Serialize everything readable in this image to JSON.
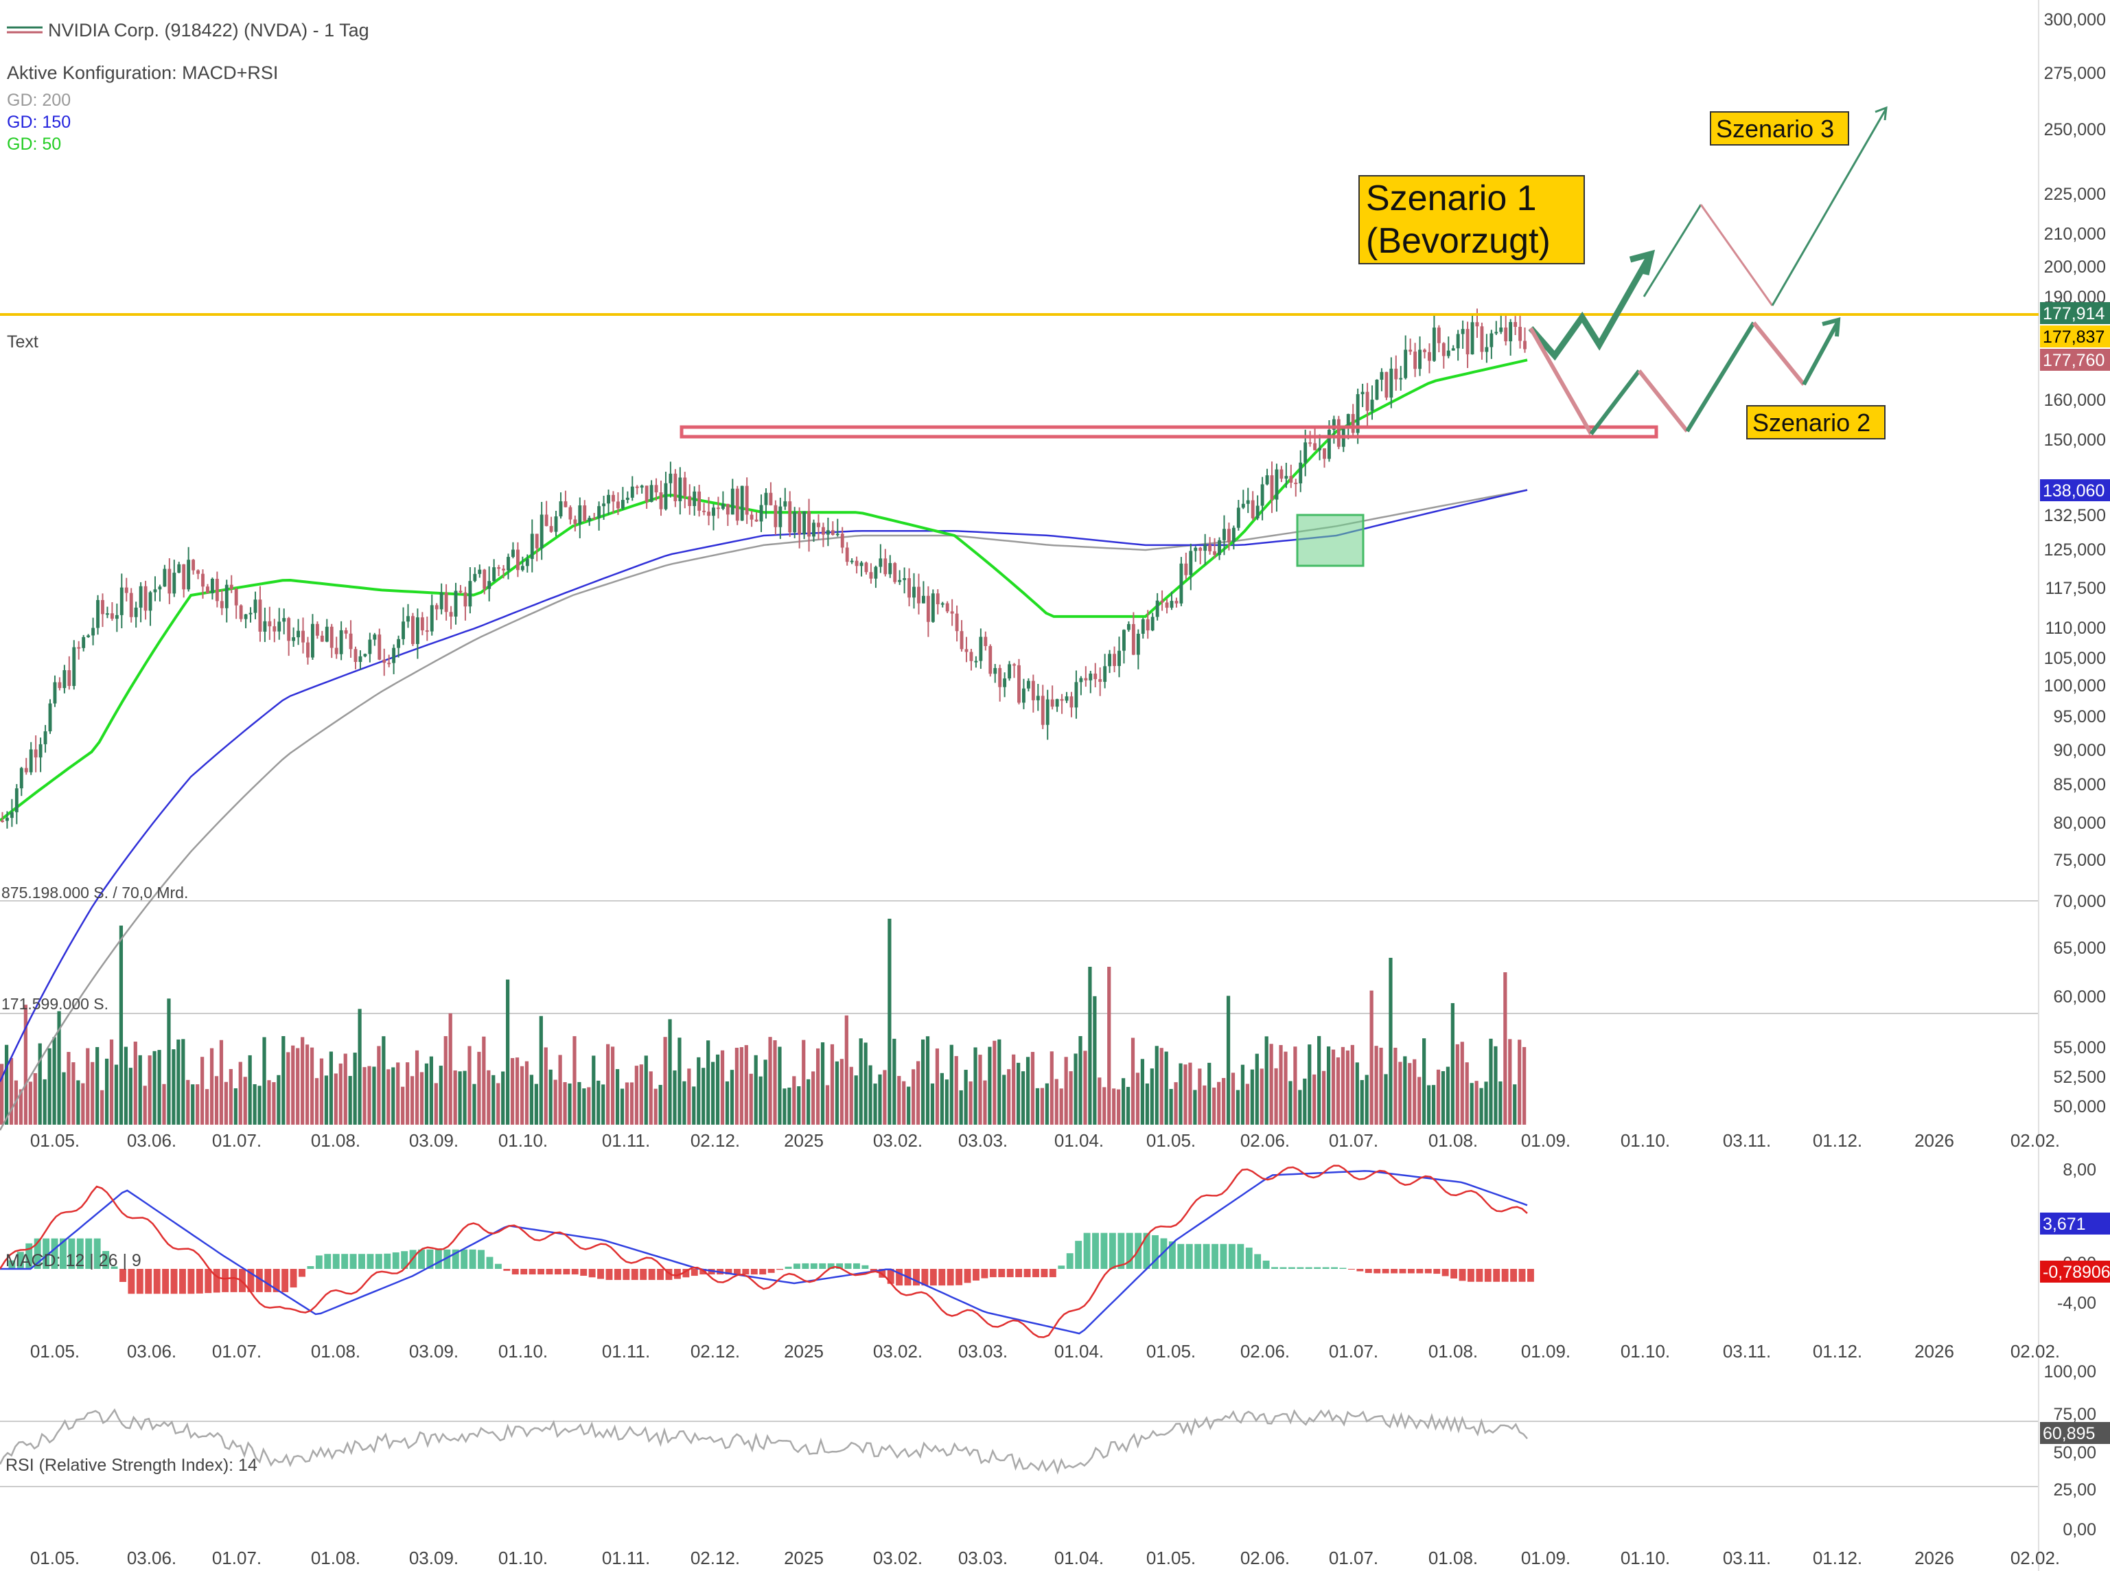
{
  "header": {
    "title": "NVIDIA Corp. (918422) (NVDA) - 1 Tag",
    "config": "Aktive Konfiguration: MACD+RSI",
    "legend": [
      {
        "label": "GD: 200",
        "color": "#999999"
      },
      {
        "label": "GD: 150",
        "color": "#2222dd"
      },
      {
        "label": "GD: 50",
        "color": "#22dd22"
      }
    ],
    "text_label": "Text"
  },
  "colors": {
    "up": "#2e7d5a",
    "down": "#c0616d",
    "resistance": "#e06070",
    "yellow_line": "#f5c400",
    "ma200": "#9a9a9a",
    "ma150": "#3030d8",
    "ma50": "#22dd22",
    "arrow_green": "#3f8f6a",
    "arrow_red": "#d48a92",
    "callout_bg": "#ffd000"
  },
  "scenarios": {
    "s1_line1": "Szenario 1",
    "s1_line2": "(Bevorzugt)",
    "s2": "Szenario 2",
    "s3": "Szenario 3"
  },
  "price_axis": {
    "ticks": [
      "300,000",
      "275,000",
      "250,000",
      "225,000",
      "210,000",
      "200,000",
      "190,000",
      "160,000",
      "150,000",
      "132,500",
      "125,000",
      "117,500",
      "110,000",
      "105,000",
      "100,000",
      "95,000",
      "90,000",
      "85,000",
      "80,000",
      "75,000",
      "70,000",
      "65,000",
      "60,000",
      "55,000",
      "52,500",
      "50,000"
    ],
    "badges": [
      {
        "text": "177,914",
        "bg": "#2e7d5a",
        "fg": "#ffffff"
      },
      {
        "text": "177,837",
        "bg": "#ffd000",
        "fg": "#000000"
      },
      {
        "text": "177,760",
        "bg": "#c0616d",
        "fg": "#ffffff"
      },
      {
        "text": "138,060",
        "bg": "#2a2ad0",
        "fg": "#ffffff"
      }
    ]
  },
  "volume": {
    "label1": "875.198.000 S. / 70,0 Mrd.",
    "label2": "171.599.000 S."
  },
  "macd": {
    "label": "MACD: 12 | 26 | 9",
    "ticks": [
      "8,00",
      "0,00",
      "-4,00"
    ],
    "badges": [
      {
        "text": "3,671",
        "bg": "#2a2ad0",
        "fg": "#ffffff"
      },
      {
        "text": "-0,78906",
        "bg": "#e01010",
        "fg": "#ffffff"
      }
    ]
  },
  "rsi": {
    "label": "RSI (Relative Strength Index): 14",
    "ticks": [
      "100,00",
      "75,00",
      "50,00",
      "25,00",
      "0,00"
    ],
    "badge": {
      "text": "60,895",
      "bg": "#555555",
      "fg": "#ffffff"
    }
  },
  "time_axis": [
    "01.05.",
    "03.06.",
    "01.07.",
    "01.08.",
    "03.09.",
    "01.10.",
    "01.11.",
    "02.12.",
    "2025",
    "03.02.",
    "03.03.",
    "01.04.",
    "01.05.",
    "02.06.",
    "01.07.",
    "01.08.",
    "01.09.",
    "01.10.",
    "03.11.",
    "01.12.",
    "2026",
    "02.02."
  ],
  "chart_data": {
    "type": "candlestick",
    "title": "NVIDIA Corp. (918422) (NVDA) - 1 Tag",
    "x": [
      "01.05.",
      "03.06.",
      "01.07.",
      "01.08.",
      "03.09.",
      "01.10.",
      "01.11.",
      "02.12.",
      "2025",
      "03.02.",
      "03.03.",
      "01.04.",
      "01.05.",
      "02.06.",
      "01.07.",
      "01.08.",
      "01.09.",
      "01.10.",
      "03.11.",
      "01.12.",
      "2026",
      "02.02."
    ],
    "price_series": [
      {
        "name": "Kurs",
        "values": [
          80,
          112,
          121,
          108,
          106,
          118,
          134,
          138,
          134,
          124,
          110,
          95,
          110,
          133,
          151,
          176,
          178
        ]
      }
    ],
    "moving_averages": [
      {
        "name": "GD: 200",
        "values": [
          48,
          62,
          76,
          89,
          99,
          108,
          116,
          122,
          126,
          128,
          128,
          126,
          125,
          127,
          130,
          134,
          138
        ]
      },
      {
        "name": "GD: 150",
        "values": [
          52,
          70,
          86,
          98,
          104,
          110,
          117,
          124,
          128,
          129,
          129,
          128,
          126,
          126,
          128,
          133,
          138
        ]
      },
      {
        "name": "GD: 50",
        "values": [
          80,
          90,
          116,
          119,
          117,
          116,
          130,
          137,
          133,
          133,
          128,
          112,
          112,
          128,
          152,
          165,
          171
        ]
      }
    ],
    "levels": {
      "resistance": 151,
      "current": 177.837
    },
    "ylim": [
      50,
      300
    ],
    "macd": {
      "values": [
        0,
        5.5,
        1,
        -3.2,
        -0.5,
        3,
        2,
        0,
        -1,
        0,
        -3,
        -4.5,
        2,
        6.5,
        6.8,
        6,
        3.671
      ],
      "signal_last": -0.78906,
      "ylim": [
        -4,
        8
      ]
    },
    "rsi": {
      "values": [
        45,
        73,
        62,
        42,
        55,
        60,
        64,
        58,
        55,
        50,
        50,
        38,
        58,
        72,
        71,
        68,
        60.895
      ],
      "ylim": [
        0,
        100
      ]
    },
    "volume_range": "875.198.000 S. / 70,0 Mrd."
  }
}
